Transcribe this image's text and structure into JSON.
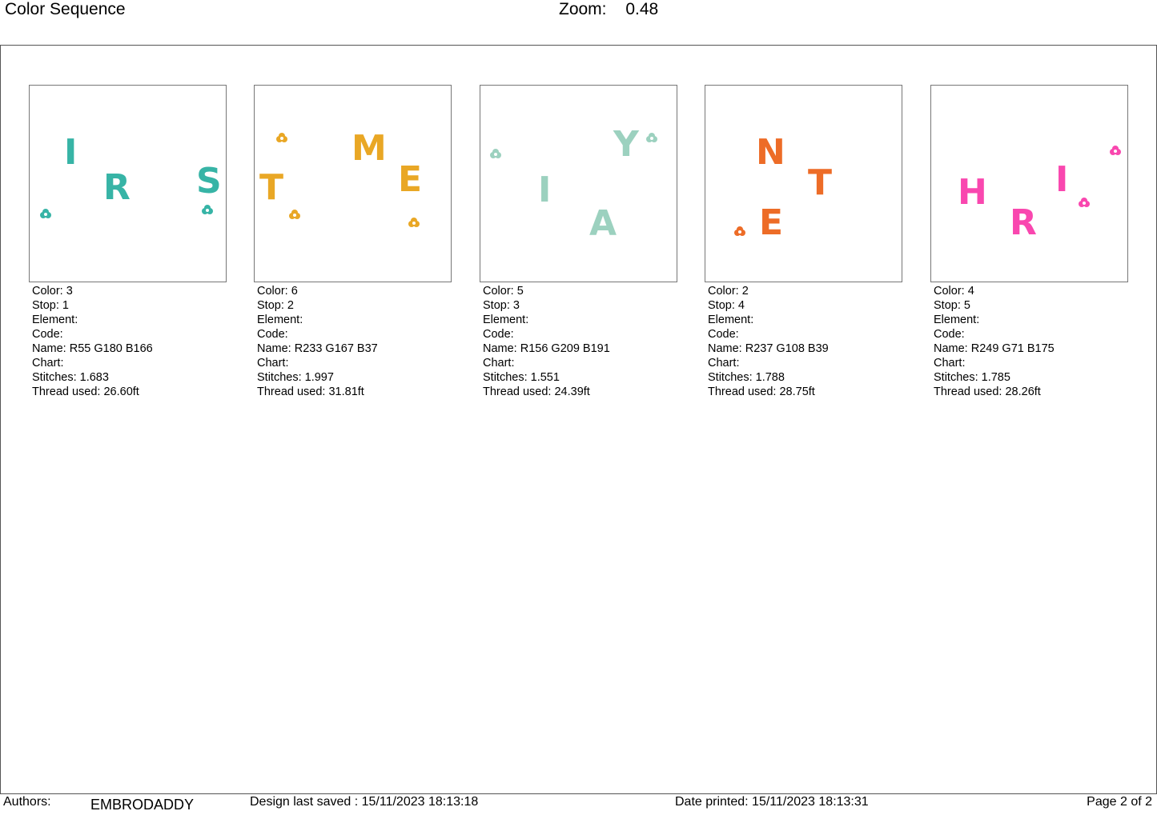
{
  "header": {
    "title": "Color Sequence",
    "zoom_label": "Zoom:",
    "zoom_value": "0.48"
  },
  "cards": [
    {
      "color_hex": "#37B4A6",
      "letters": [
        "I",
        "R",
        "S"
      ],
      "lines": [
        "Color: 3",
        "Stop: 1",
        "Element:",
        "Code:",
        "Name: R55 G180 B166",
        "Chart:",
        "Stitches: 1.683",
        "Thread used: 26.60ft"
      ]
    },
    {
      "color_hex": "#E9A725",
      "letters": [
        "M",
        "T",
        "E"
      ],
      "lines": [
        "Color: 6",
        "Stop: 2",
        "Element:",
        "Code:",
        "Name: R233 G167 B37",
        "Chart:",
        "Stitches: 1.997",
        "Thread used: 31.81ft"
      ]
    },
    {
      "color_hex": "#9CD1BF",
      "letters": [
        "Y",
        "I",
        "A"
      ],
      "lines": [
        "Color: 5",
        "Stop: 3",
        "Element:",
        "Code:",
        "Name: R156 G209 B191",
        "Chart:",
        "Stitches: 1.551",
        "Thread used: 24.39ft"
      ]
    },
    {
      "color_hex": "#ED6C27",
      "letters": [
        "N",
        "T",
        "E"
      ],
      "lines": [
        "Color: 2",
        "Stop: 4",
        "Element:",
        "Code:",
        "Name: R237 G108 B39",
        "Chart:",
        "Stitches: 1.788",
        "Thread used: 28.75ft"
      ]
    },
    {
      "color_hex": "#F947AF",
      "letters": [
        "H",
        "I",
        "R"
      ],
      "lines": [
        "Color: 4",
        "Stop: 5",
        "Element:",
        "Code:",
        "Name: R249 G71 B175",
        "Chart:",
        "Stitches: 1.785",
        "Thread used: 28.26ft"
      ]
    }
  ],
  "footer": {
    "authors_label": "Authors:",
    "authors_value": "EMBRODADDY",
    "saved": "Design last saved : 15/11/2023 18:13:18",
    "printed": "Date printed: 15/11/2023 18:13:31",
    "page": "Page 2 of 2"
  }
}
